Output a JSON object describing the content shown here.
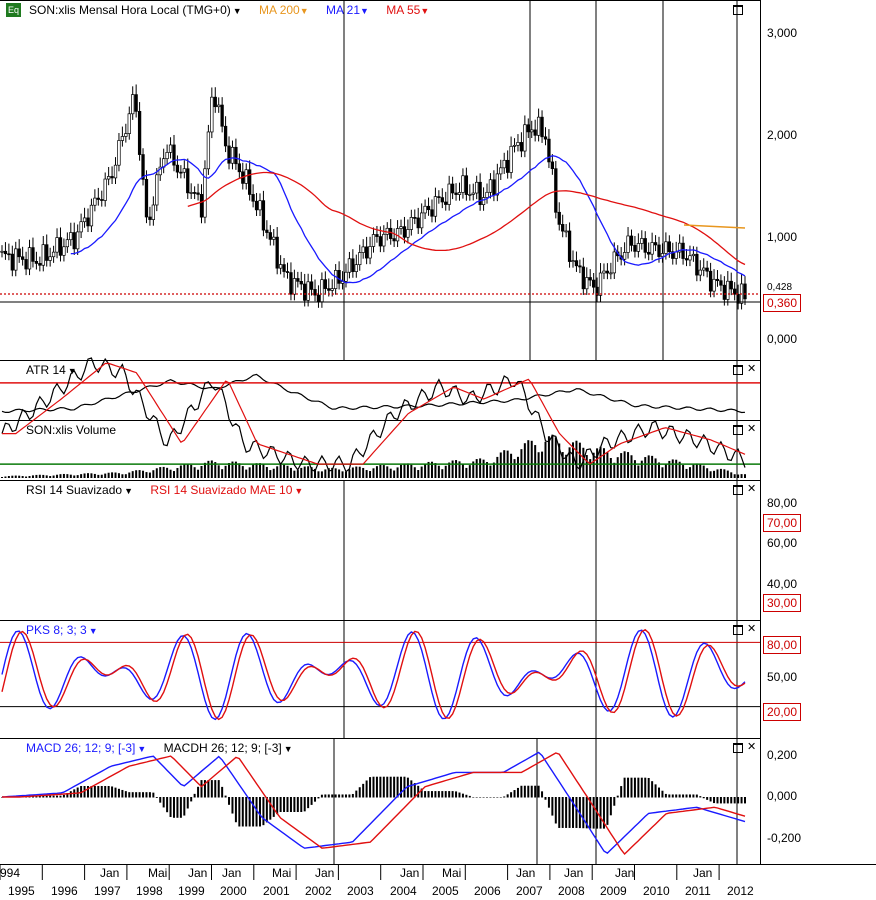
{
  "main": {
    "symbol_badge": "Eq",
    "title": "SON:xlis Mensal Hora Local (TMG+0)",
    "ma200": "MA 200",
    "ma21": "MA 21",
    "ma55": "MA 55",
    "ticks": [
      "3,000",
      "2,000",
      "1,000",
      "0,000"
    ],
    "last_price": "0,360",
    "partial_tick": "0,428"
  },
  "atr": {
    "title": "ATR 14"
  },
  "volume": {
    "title": "SON:xlis Volume"
  },
  "rsi": {
    "title": "RSI 14 Suavizado",
    "ma_title": "RSI 14 Suavizado MAE 10",
    "ticks": [
      "80,00",
      "60,00",
      "40,00"
    ],
    "upper": "70,00",
    "lower": "30,00"
  },
  "pks": {
    "title": "PKS 8; 3; 3",
    "ticks": [
      "50,00"
    ],
    "upper": "80,00",
    "lower": "20,00"
  },
  "macd": {
    "title": "MACD 26; 12; 9; [-3]",
    "hist_title": "MACDH 26; 12; 9; [-3]",
    "ticks": [
      "0,200",
      "0,000",
      "-0,200"
    ]
  },
  "xaxis": {
    "years": [
      "1995",
      "1996",
      "1997",
      "1998",
      "1999",
      "2000",
      "2001",
      "2002",
      "2003",
      "2004",
      "2005",
      "2006",
      "2007",
      "2008",
      "2009",
      "2010",
      "2011",
      "2012"
    ],
    "first_year_partial": "994",
    "months": [
      "Jan",
      "Mai",
      "Jan",
      "Jan",
      "Mai",
      "Jan",
      "Jan",
      "Mai",
      "Jan",
      "Jan",
      "Jan",
      "Jan"
    ]
  },
  "colors": {
    "ma200": "#e8961e",
    "ma21": "#1a1aff",
    "ma55": "#e01010",
    "rsi_upper": "#e01010",
    "rsi_lower": "#0a7a0a"
  }
}
